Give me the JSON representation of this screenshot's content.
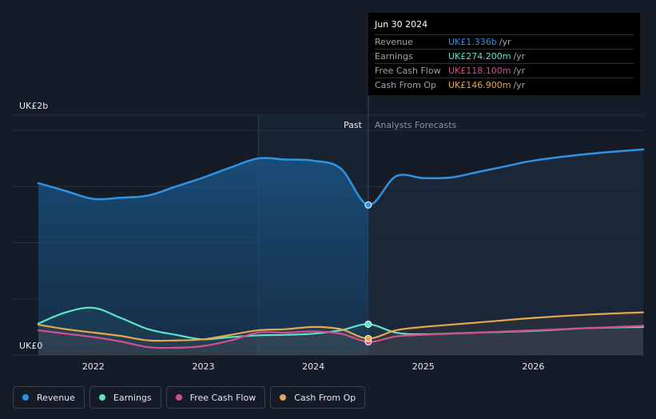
{
  "chart_data": {
    "type": "line",
    "y_unit_labels": {
      "top": "UK£2b",
      "bottom": "UK£0"
    },
    "ylim": [
      0,
      2000
    ],
    "xlim": [
      2021.5,
      2027.0
    ],
    "x_ticks": [
      {
        "value": 2022,
        "label": "2022"
      },
      {
        "value": 2023,
        "label": "2023"
      },
      {
        "value": 2024,
        "label": "2024"
      },
      {
        "value": 2025,
        "label": "2025"
      },
      {
        "value": 2026,
        "label": "2026"
      }
    ],
    "past_label": "Past",
    "forecast_label": "Analysts Forecasts",
    "past_start": 2023.5,
    "divider": 2024.5,
    "series": [
      {
        "name": "Revenue",
        "color": "#2e93e3",
        "points": [
          [
            2021.5,
            1530
          ],
          [
            2021.75,
            1460
          ],
          [
            2022.0,
            1390
          ],
          [
            2022.25,
            1400
          ],
          [
            2022.5,
            1420
          ],
          [
            2022.75,
            1500
          ],
          [
            2023.0,
            1580
          ],
          [
            2023.25,
            1670
          ],
          [
            2023.5,
            1750
          ],
          [
            2023.75,
            1740
          ],
          [
            2024.0,
            1730
          ],
          [
            2024.25,
            1660
          ],
          [
            2024.5,
            1336
          ],
          [
            2024.75,
            1590
          ],
          [
            2025.0,
            1575
          ],
          [
            2025.25,
            1580
          ],
          [
            2025.5,
            1630
          ],
          [
            2025.75,
            1680
          ],
          [
            2026.0,
            1730
          ],
          [
            2026.5,
            1790
          ],
          [
            2027.0,
            1830
          ]
        ]
      },
      {
        "name": "Earnings",
        "color": "#5de3c8",
        "points": [
          [
            2021.5,
            280
          ],
          [
            2021.75,
            380
          ],
          [
            2022.0,
            420
          ],
          [
            2022.25,
            330
          ],
          [
            2022.5,
            230
          ],
          [
            2022.75,
            180
          ],
          [
            2023.0,
            140
          ],
          [
            2023.25,
            160
          ],
          [
            2023.5,
            175
          ],
          [
            2023.75,
            180
          ],
          [
            2024.0,
            190
          ],
          [
            2024.25,
            220
          ],
          [
            2024.5,
            274.2
          ],
          [
            2024.75,
            200
          ],
          [
            2025.0,
            185
          ],
          [
            2025.5,
            200
          ],
          [
            2026.0,
            215
          ],
          [
            2026.5,
            240
          ],
          [
            2027.0,
            250
          ]
        ]
      },
      {
        "name": "Free Cash Flow",
        "color": "#d04f8e",
        "points": [
          [
            2021.5,
            220
          ],
          [
            2021.75,
            190
          ],
          [
            2022.0,
            160
          ],
          [
            2022.25,
            120
          ],
          [
            2022.5,
            70
          ],
          [
            2022.75,
            65
          ],
          [
            2023.0,
            80
          ],
          [
            2023.25,
            130
          ],
          [
            2023.5,
            200
          ],
          [
            2023.75,
            200
          ],
          [
            2024.0,
            210
          ],
          [
            2024.25,
            190
          ],
          [
            2024.5,
            118.1
          ],
          [
            2024.75,
            165
          ],
          [
            2025.0,
            180
          ],
          [
            2025.5,
            200
          ],
          [
            2026.0,
            220
          ],
          [
            2026.5,
            240
          ],
          [
            2027.0,
            260
          ]
        ]
      },
      {
        "name": "Cash From Op",
        "color": "#e6a54f",
        "points": [
          [
            2021.5,
            270
          ],
          [
            2021.75,
            230
          ],
          [
            2022.0,
            200
          ],
          [
            2022.25,
            170
          ],
          [
            2022.5,
            130
          ],
          [
            2022.75,
            130
          ],
          [
            2023.0,
            140
          ],
          [
            2023.25,
            180
          ],
          [
            2023.5,
            220
          ],
          [
            2023.75,
            230
          ],
          [
            2024.0,
            250
          ],
          [
            2024.25,
            230
          ],
          [
            2024.5,
            146.9
          ],
          [
            2024.75,
            220
          ],
          [
            2025.0,
            250
          ],
          [
            2025.5,
            290
          ],
          [
            2026.0,
            330
          ],
          [
            2026.5,
            360
          ],
          [
            2027.0,
            380
          ]
        ]
      }
    ]
  },
  "tooltip": {
    "date": "Jun 30 2024",
    "rows": [
      {
        "label": "Revenue",
        "value": "UK£1.336b",
        "unit": "/yr",
        "color": "#2e93e3"
      },
      {
        "label": "Earnings",
        "value": "UK£274.200m",
        "unit": "/yr",
        "color": "#5de3c8"
      },
      {
        "label": "Free Cash Flow",
        "value": "UK£118.100m",
        "unit": "/yr",
        "color": "#d04f8e"
      },
      {
        "label": "Cash From Op",
        "value": "UK£146.900m",
        "unit": "/yr",
        "color": "#e6a54f"
      }
    ]
  },
  "legend": [
    {
      "label": "Revenue",
      "color": "#2e93e3"
    },
    {
      "label": "Earnings",
      "color": "#5de3c8"
    },
    {
      "label": "Free Cash Flow",
      "color": "#d04f8e"
    },
    {
      "label": "Cash From Op",
      "color": "#e6a54f"
    }
  ]
}
